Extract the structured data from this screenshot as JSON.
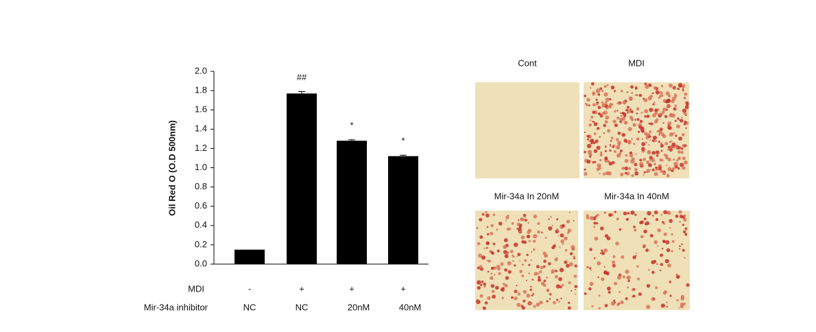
{
  "chart_data": {
    "type": "bar",
    "ylabel": "Oil Red O (O.D 500nm)",
    "values": [
      0.15,
      1.77,
      1.28,
      1.12
    ],
    "errors": [
      0,
      0.02,
      0.01,
      0.01
    ],
    "significance": [
      null,
      "##",
      "*",
      "*"
    ],
    "color": "#000000",
    "ylim": [
      0,
      2
    ],
    "yticks": [
      {
        "value": 0,
        "label": "0.0"
      },
      0.2,
      0.4,
      0.6,
      0.8,
      {
        "value": 1,
        "label": "1.0"
      },
      1.2,
      1.4,
      1.6,
      1.8,
      {
        "value": 2,
        "label": "2.0"
      }
    ],
    "treatment_rows": [
      {
        "label": "MDI",
        "values": [
          "-",
          "+",
          "+",
          "+"
        ]
      },
      {
        "label": "Mir-34a inhibitor",
        "values": [
          "NC",
          "NC",
          "20nM",
          "40nM"
        ]
      }
    ]
  },
  "image_panels": [
    {
      "label": "Cont"
    },
    {
      "label": "MDI"
    },
    {
      "label": "Mir-34a In 20nM"
    },
    {
      "label": "Mir-34a In 40nM"
    }
  ]
}
